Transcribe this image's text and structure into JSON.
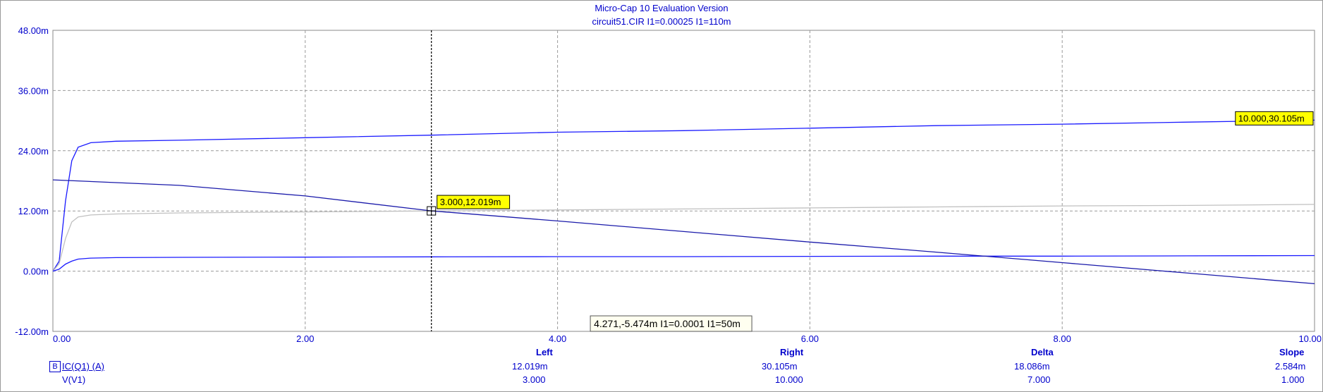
{
  "window": {
    "title": "Micro-Cap 10 Evaluation Version",
    "subtitle": "circuit51.CIR I1=0.00025 I1=110m"
  },
  "chart_data": {
    "type": "line",
    "xlim": [
      0,
      10
    ],
    "ylim": [
      -12,
      48
    ],
    "x_ticks": [
      "0.00",
      "2.00",
      "4.00",
      "6.00",
      "8.00",
      "10.00"
    ],
    "y_ticks": [
      "-12.00m",
      "0.00m",
      "12.00m",
      "24.00m",
      "36.00m",
      "48.00m"
    ],
    "grid": true,
    "series": [
      {
        "color": "#1a1aff",
        "x": [
          0,
          0.05,
          0.1,
          0.15,
          0.2,
          0.3,
          0.5,
          1,
          2,
          3,
          4,
          5,
          6,
          7,
          8,
          9,
          10
        ],
        "y": [
          0,
          2,
          14,
          22,
          24.7,
          25.6,
          25.9,
          26.1,
          26.6,
          27.1,
          27.7,
          28.0,
          28.5,
          29.0,
          29.3,
          29.7,
          30.105
        ]
      },
      {
        "color": "#c0c0c0",
        "x": [
          0,
          0.05,
          0.1,
          0.15,
          0.2,
          0.3,
          0.5,
          1,
          2,
          3,
          4,
          5,
          6,
          7,
          8,
          9,
          10
        ],
        "y": [
          0,
          1.5,
          6.5,
          9.8,
          10.8,
          11.2,
          11.4,
          11.6,
          11.8,
          12.0,
          12.2,
          12.4,
          12.6,
          12.8,
          13.0,
          13.1,
          13.3
        ]
      },
      {
        "color": "#1a1aff",
        "x": [
          0,
          0.05,
          0.1,
          0.15,
          0.2,
          0.3,
          0.5,
          1,
          2,
          3,
          4,
          5,
          6,
          7,
          8,
          9,
          10
        ],
        "y": [
          0,
          0.4,
          1.4,
          2.0,
          2.4,
          2.6,
          2.7,
          2.75,
          2.8,
          2.85,
          2.9,
          2.9,
          2.95,
          3.0,
          3.0,
          3.05,
          3.1
        ]
      },
      {
        "color": "#1a1aaa",
        "x": [
          0,
          1,
          2,
          3,
          4,
          5,
          6,
          7,
          8,
          9,
          10
        ],
        "y": [
          18.2,
          17.1,
          15.0,
          12.019,
          10.0,
          7.9,
          5.8,
          3.8,
          1.7,
          -0.4,
          -2.5
        ]
      }
    ],
    "cursor_x": 3.0,
    "markers": [
      {
        "label": "3.000,12.019m",
        "x": 3.0,
        "y": 12.019
      },
      {
        "label": "10.000,30.105m",
        "x": 10.0,
        "y": 30.105
      }
    ],
    "tooltip": {
      "label": "4.271,-5.474m I1=0.0001 I1=50m",
      "x": 4.271,
      "y": -5.474
    }
  },
  "readout": {
    "headers": [
      "Left",
      "Right",
      "Delta",
      "Slope"
    ],
    "rows": [
      {
        "badge": "B",
        "name": "IC(Q1) (A)",
        "values": [
          "12.019m",
          "30.105m",
          "18.086m",
          "2.584m"
        ]
      },
      {
        "badge": "",
        "name": "V(V1)",
        "values": [
          "3.000",
          "10.000",
          "7.000",
          "1.000"
        ]
      }
    ]
  }
}
